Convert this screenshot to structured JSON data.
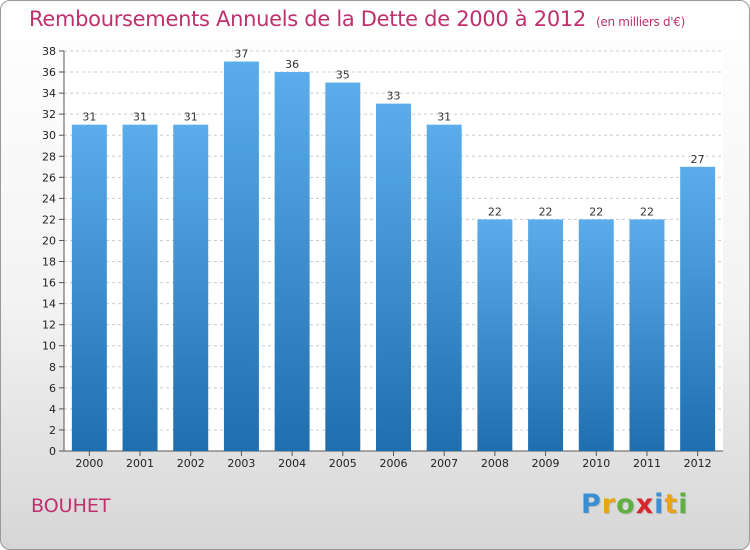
{
  "header": {
    "title": "Remboursements Annuels de la Dette de 2000 à 2012",
    "subtitle": "(en milliers d'€)"
  },
  "footer": {
    "commune": "BOUHET",
    "brand": [
      "P",
      "r",
      "o",
      "x",
      "i",
      "t",
      "i"
    ],
    "brand_colors": [
      "#3a8fd4",
      "#e8a317",
      "#5fb040",
      "#d8262f",
      "#3a8fd4",
      "#e8a317",
      "#5fb040"
    ]
  },
  "colors": {
    "bar_top": "#5aadea",
    "bar_bottom": "#1f6fb0",
    "title": "#c0306e",
    "grid": "#cccccc"
  },
  "chart_data": {
    "type": "bar",
    "title": "Remboursements Annuels de la Dette de 2000 à 2012",
    "subtitle": "(en milliers d'€)",
    "categories": [
      "2000",
      "2001",
      "2002",
      "2003",
      "2004",
      "2005",
      "2006",
      "2007",
      "2008",
      "2009",
      "2010",
      "2011",
      "2012"
    ],
    "values": [
      31,
      31,
      31,
      37,
      36,
      35,
      33,
      31,
      22,
      22,
      22,
      22,
      27
    ],
    "ylim": [
      0,
      38
    ],
    "yticks": [
      0,
      2,
      4,
      6,
      8,
      10,
      12,
      14,
      16,
      18,
      20,
      22,
      24,
      26,
      28,
      30,
      32,
      34,
      36,
      38
    ],
    "grid": true,
    "xlabel": "",
    "ylabel": ""
  }
}
